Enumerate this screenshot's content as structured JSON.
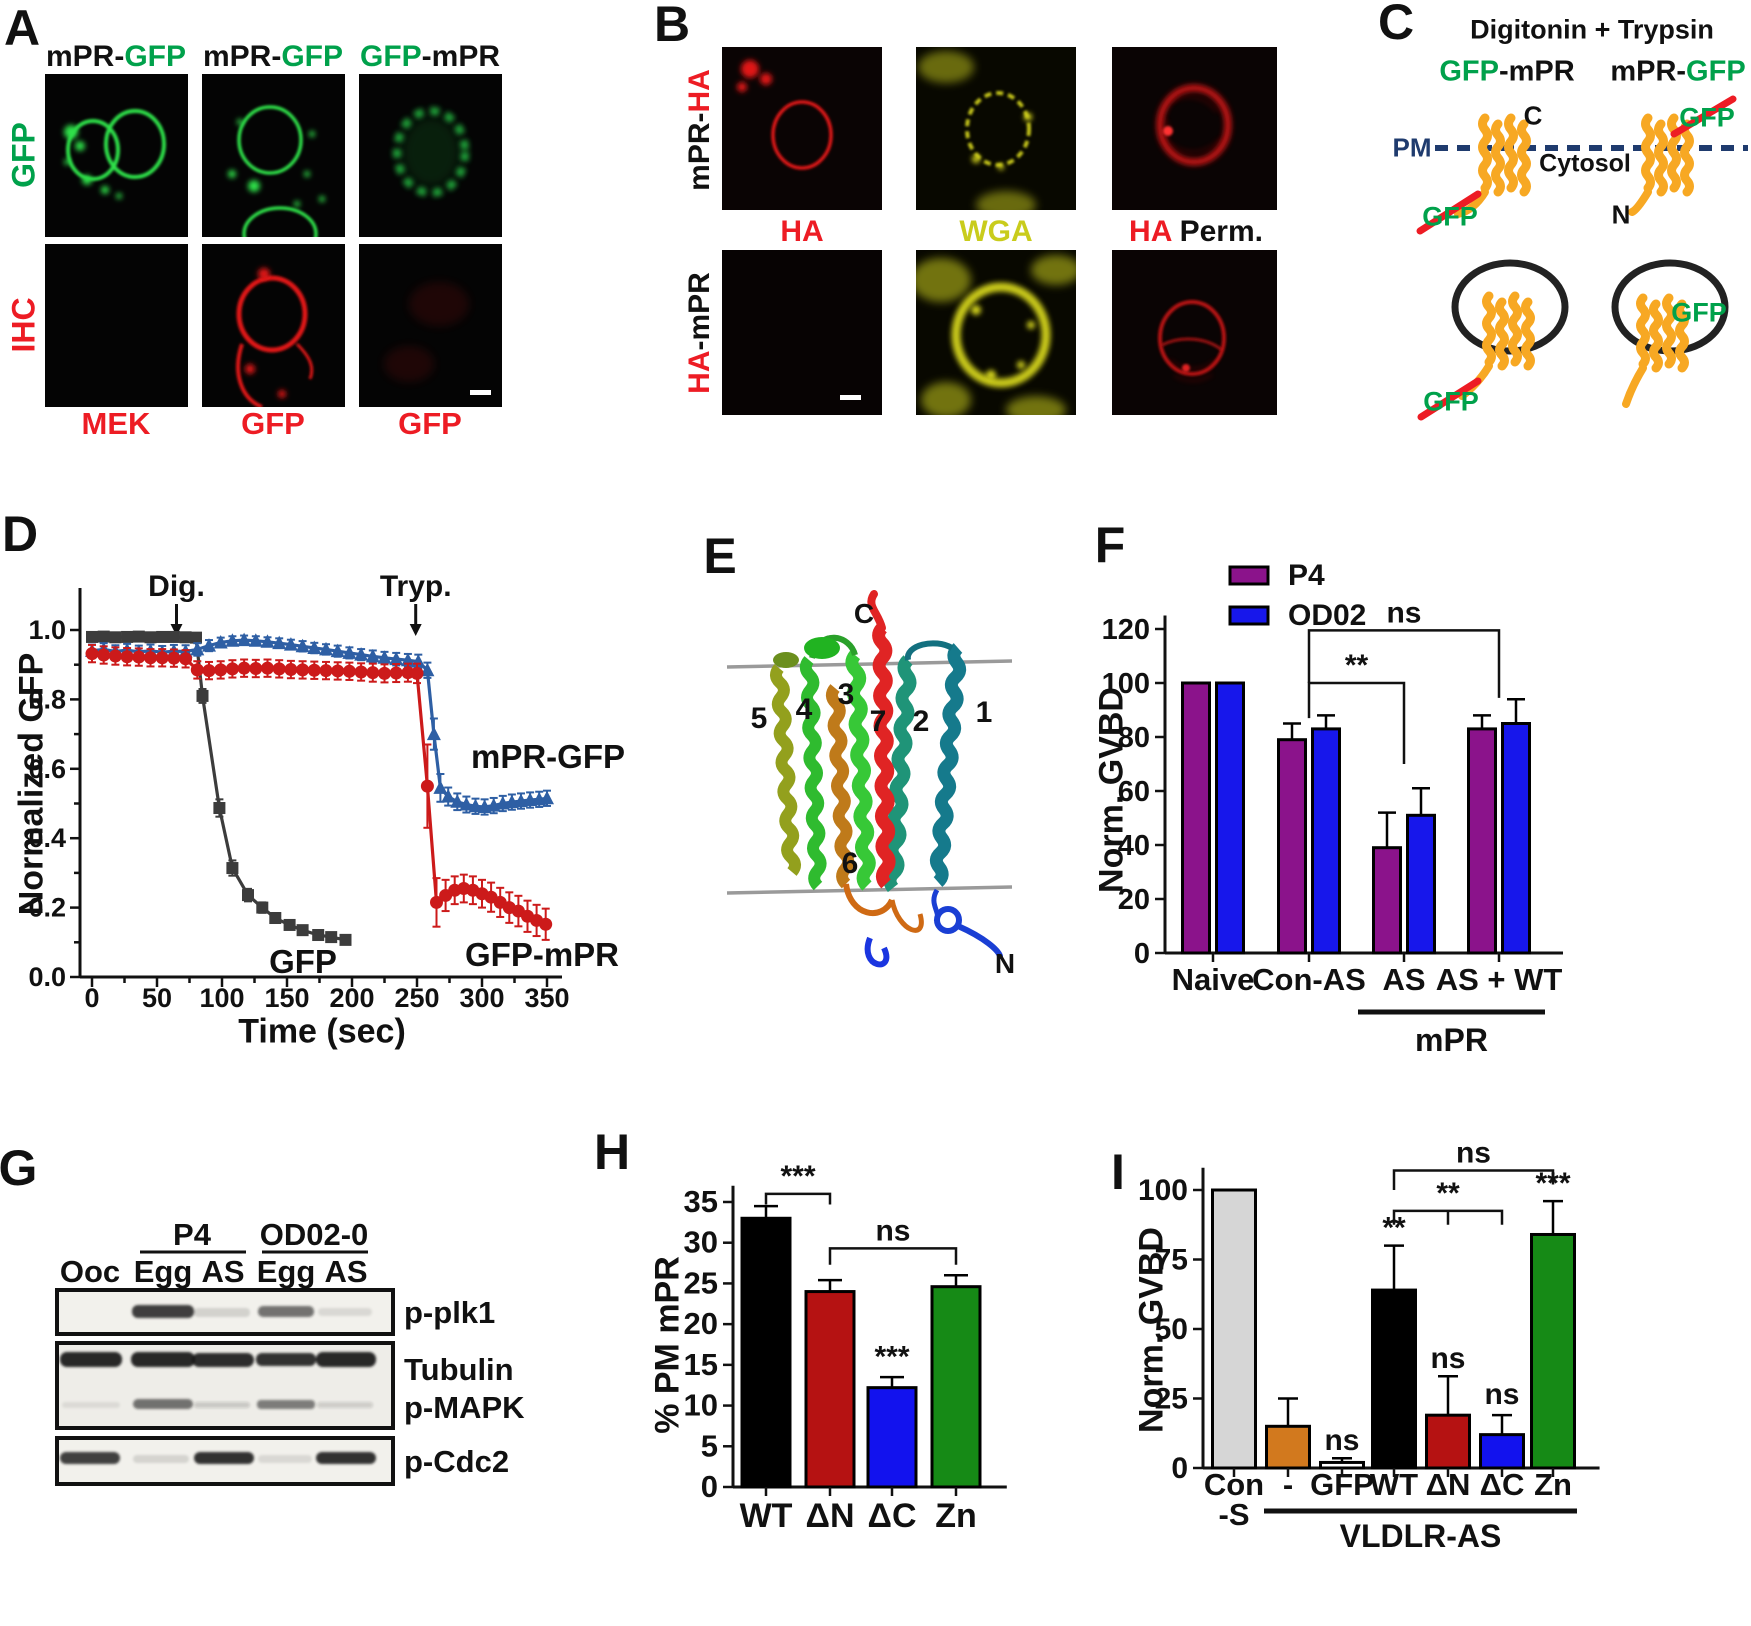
{
  "colors": {
    "green": "#00A14B",
    "red": "#ED1C24",
    "yellow": "#C9CC1C",
    "navy": "#1F3B6E",
    "black": "#111111"
  },
  "panelA": {
    "letter": "A",
    "headers": [
      {
        "segs": [
          {
            "t": "mPR-",
            "c": "#111111"
          },
          {
            "t": "GFP",
            "c": "#00A14B"
          }
        ]
      },
      {
        "segs": [
          {
            "t": "mPR-",
            "c": "#111111"
          },
          {
            "t": "GFP",
            "c": "#00A14B"
          }
        ]
      },
      {
        "segs": [
          {
            "t": "GFP",
            "c": "#00A14B"
          },
          {
            "t": "-mPR",
            "c": "#111111"
          }
        ]
      }
    ],
    "row_labels": [
      {
        "t": "GFP",
        "c": "#00A14B"
      },
      {
        "t": "IHC",
        "c": "#ED1C24"
      }
    ],
    "bottom_labels": [
      "MEK",
      "GFP",
      "GFP"
    ]
  },
  "panelB": {
    "letter": "B",
    "row_labels": [
      {
        "segs": [
          {
            "t": "mPR-",
            "c": "#111111"
          },
          {
            "t": "HA",
            "c": "#ED1C24"
          }
        ]
      },
      {
        "segs": [
          {
            "t": "HA",
            "c": "#ED1C24"
          },
          {
            "t": "-mPR",
            "c": "#111111"
          }
        ]
      }
    ],
    "mid_labels": [
      {
        "segs": [
          {
            "t": "HA",
            "c": "#ED1C24"
          }
        ]
      },
      {
        "segs": [
          {
            "t": "WGA",
            "c": "#C9CC1C"
          }
        ]
      },
      {
        "segs": [
          {
            "t": "HA",
            "c": "#ED1C24"
          },
          {
            "t": " Perm.",
            "c": "#111111"
          }
        ]
      }
    ]
  },
  "panelC": {
    "letter": "C",
    "title": "Digitonin + Trypsin",
    "left_construct": {
      "segs": [
        {
          "t": "GFP",
          "c": "#00A14B"
        },
        {
          "t": "-mPR",
          "c": "#111111"
        }
      ]
    },
    "right_construct": {
      "segs": [
        {
          "t": "mPR-",
          "c": "#111111"
        },
        {
          "t": "GFP",
          "c": "#00A14B"
        }
      ]
    },
    "pm": "PM",
    "cytosol": "Cytosol",
    "c_term": "C",
    "n_term": "N",
    "gfp": "GFP"
  },
  "panelD": {
    "letter": "D",
    "series_labels": {
      "gfp": "GFP",
      "mpr_gfp": "mPR-GFP",
      "gfp_mpr": "GFP-mPR"
    },
    "xlabel": "Time (sec)",
    "ylabel": "Normalized GFP"
  },
  "panelE": {
    "letter": "E",
    "helix_numbers": [
      "1",
      "2",
      "3",
      "4",
      "5",
      "6",
      "7"
    ],
    "c_term": "C",
    "n_term": "N"
  },
  "panelF": {
    "letter": "F",
    "ylabel": "Norm. GVBD"
  },
  "panelG": {
    "letter": "G",
    "group_labels": [
      "P4",
      "OD02-0"
    ],
    "lane_labels": [
      "Ooc",
      "Egg",
      "AS",
      "Egg",
      "AS"
    ],
    "blot_labels": [
      "p-plk1",
      "Tubulin",
      "p-MAPK",
      "p-Cdc2"
    ]
  },
  "panelH": {
    "letter": "H",
    "ylabel": "% PM mPR"
  },
  "panelI": {
    "letter": "I",
    "ylabel": "Norm. GVBD"
  },
  "chart_data": [
    {
      "id": "d",
      "type": "line",
      "title": "",
      "xlabel": "Time (sec)",
      "ylabel": "Normalized GFP",
      "xlim": [
        0,
        350
      ],
      "ylim": [
        0,
        1.05
      ],
      "xticks": [
        0,
        50,
        100,
        150,
        200,
        250,
        300,
        350
      ],
      "yticks": [
        0,
        0.2,
        0.4,
        0.6,
        0.8,
        1.0
      ],
      "x_minor": 25,
      "y_minor": 0.1,
      "legend_position": "inline",
      "events": [
        {
          "text": "Dig.",
          "x": 65
        },
        {
          "text": "Tryp.",
          "x": 249
        }
      ],
      "series": [
        {
          "name": "GFP",
          "marker": "square",
          "color": "#3c3c3c",
          "points": [
            [
              0,
              0.98,
              0.012
            ],
            [
              9,
              0.981,
              0.012
            ],
            [
              18,
              0.979,
              0.012
            ],
            [
              27,
              0.98,
              0.012
            ],
            [
              36,
              0.981,
              0.012
            ],
            [
              45,
              0.979,
              0.012
            ],
            [
              54,
              0.98,
              0.012
            ],
            [
              63,
              0.98,
              0.012
            ],
            [
              72,
              0.979,
              0.012
            ],
            [
              80,
              0.978,
              0.012
            ],
            [
              85,
              0.81,
              0.02
            ],
            [
              98,
              0.487,
              0.025
            ],
            [
              108,
              0.314,
              0.022
            ],
            [
              120,
              0.236,
              0.018
            ],
            [
              131,
              0.2,
              0.015
            ],
            [
              141,
              0.17,
              0.014
            ],
            [
              152,
              0.15,
              0.012
            ],
            [
              162,
              0.135,
              0.012
            ],
            [
              174,
              0.121,
              0.01
            ],
            [
              184,
              0.115,
              0.01
            ],
            [
              195,
              0.107,
              0.01
            ]
          ]
        },
        {
          "name": "mPR-GFP",
          "marker": "triangle",
          "color": "#2E5FA4",
          "points": [
            [
              0,
              0.94,
              0.018
            ],
            [
              9,
              0.944,
              0.018
            ],
            [
              18,
              0.938,
              0.018
            ],
            [
              27,
              0.942,
              0.018
            ],
            [
              36,
              0.937,
              0.018
            ],
            [
              45,
              0.94,
              0.018
            ],
            [
              54,
              0.936,
              0.018
            ],
            [
              63,
              0.939,
              0.018
            ],
            [
              72,
              0.938,
              0.018
            ],
            [
              81,
              0.944,
              0.018
            ],
            [
              90,
              0.955,
              0.016
            ],
            [
              99,
              0.964,
              0.014
            ],
            [
              108,
              0.969,
              0.013
            ],
            [
              117,
              0.971,
              0.013
            ],
            [
              126,
              0.969,
              0.013
            ],
            [
              135,
              0.966,
              0.013
            ],
            [
              144,
              0.962,
              0.014
            ],
            [
              153,
              0.958,
              0.014
            ],
            [
              162,
              0.953,
              0.015
            ],
            [
              171,
              0.948,
              0.015
            ],
            [
              180,
              0.944,
              0.015
            ],
            [
              189,
              0.939,
              0.016
            ],
            [
              198,
              0.934,
              0.016
            ],
            [
              207,
              0.929,
              0.016
            ],
            [
              216,
              0.924,
              0.017
            ],
            [
              225,
              0.92,
              0.017
            ],
            [
              234,
              0.916,
              0.018
            ],
            [
              243,
              0.913,
              0.018
            ],
            [
              251,
              0.909,
              0.02
            ],
            [
              258,
              0.884,
              0.022
            ],
            [
              263,
              0.7,
              0.045
            ],
            [
              268,
              0.545,
              0.04
            ],
            [
              274,
              0.52,
              0.026
            ],
            [
              281,
              0.505,
              0.024
            ],
            [
              288,
              0.497,
              0.023
            ],
            [
              295,
              0.492,
              0.022
            ],
            [
              302,
              0.49,
              0.022
            ],
            [
              309,
              0.494,
              0.022
            ],
            [
              316,
              0.5,
              0.022
            ],
            [
              323,
              0.504,
              0.022
            ],
            [
              330,
              0.507,
              0.022
            ],
            [
              337,
              0.51,
              0.022
            ],
            [
              344,
              0.512,
              0.022
            ],
            [
              350,
              0.515,
              0.022
            ]
          ]
        },
        {
          "name": "GFP-mPR",
          "marker": "circle",
          "color": "#CC1A1A",
          "points": [
            [
              0,
              0.932,
              0.025
            ],
            [
              9,
              0.928,
              0.025
            ],
            [
              18,
              0.925,
              0.025
            ],
            [
              27,
              0.923,
              0.025
            ],
            [
              36,
              0.922,
              0.025
            ],
            [
              45,
              0.92,
              0.025
            ],
            [
              54,
              0.92,
              0.025
            ],
            [
              63,
              0.919,
              0.025
            ],
            [
              72,
              0.917,
              0.025
            ],
            [
              81,
              0.885,
              0.025
            ],
            [
              90,
              0.883,
              0.025
            ],
            [
              99,
              0.885,
              0.025
            ],
            [
              108,
              0.888,
              0.025
            ],
            [
              117,
              0.89,
              0.025
            ],
            [
              126,
              0.889,
              0.025
            ],
            [
              135,
              0.89,
              0.025
            ],
            [
              144,
              0.888,
              0.025
            ],
            [
              153,
              0.886,
              0.025
            ],
            [
              162,
              0.885,
              0.025
            ],
            [
              171,
              0.884,
              0.025
            ],
            [
              180,
              0.883,
              0.025
            ],
            [
              189,
              0.882,
              0.025
            ],
            [
              198,
              0.881,
              0.025
            ],
            [
              207,
              0.879,
              0.025
            ],
            [
              216,
              0.877,
              0.026
            ],
            [
              225,
              0.875,
              0.026
            ],
            [
              234,
              0.876,
              0.026
            ],
            [
              243,
              0.877,
              0.026
            ],
            [
              250,
              0.875,
              0.028
            ],
            [
              258,
              0.55,
              0.12
            ],
            [
              265,
              0.215,
              0.07
            ],
            [
              272,
              0.235,
              0.045
            ],
            [
              279,
              0.25,
              0.04
            ],
            [
              286,
              0.255,
              0.04
            ],
            [
              293,
              0.25,
              0.04
            ],
            [
              300,
              0.24,
              0.04
            ],
            [
              307,
              0.23,
              0.042
            ],
            [
              314,
              0.215,
              0.042
            ],
            [
              321,
              0.2,
              0.044
            ],
            [
              328,
              0.19,
              0.044
            ],
            [
              335,
              0.175,
              0.045
            ],
            [
              342,
              0.163,
              0.045
            ],
            [
              349,
              0.152,
              0.045
            ]
          ]
        }
      ]
    },
    {
      "id": "f",
      "type": "grouped_bar",
      "ylabel": "Norm. GVBD",
      "categories": [
        "Naive",
        "Con-AS",
        "AS",
        "AS + WT"
      ],
      "yticks": [
        0,
        20,
        40,
        60,
        80,
        100,
        120
      ],
      "ylim": [
        0,
        125
      ],
      "series": [
        {
          "name": "P4",
          "color": "#8B138B",
          "values": [
            100,
            79,
            39,
            83
          ],
          "errors": [
            0,
            6,
            13,
            5
          ]
        },
        {
          "name": "OD02",
          "color": "#1717EB",
          "values": [
            100,
            83,
            51,
            85
          ],
          "errors": [
            0,
            5,
            10,
            9
          ]
        }
      ],
      "brackets": [
        {
          "label": "**",
          "from": 1,
          "to": 2,
          "y": 100,
          "leg1": 13,
          "leg2": 30
        },
        {
          "label": "ns",
          "from": 1,
          "to": 3,
          "y": 119.5,
          "leg1": 19.5,
          "leg2": 25
        }
      ],
      "group_rule": {
        "label": "mPR",
        "from": 2,
        "to": 3
      }
    },
    {
      "id": "h",
      "type": "bar",
      "ylabel": "% PM mPR",
      "categories": [
        "WT",
        "ΔN",
        "ΔC",
        "Zn"
      ],
      "yticks": [
        0,
        5,
        10,
        15,
        20,
        25,
        30,
        35
      ],
      "ylim": [
        0,
        37
      ],
      "values": [
        33,
        24,
        12.2,
        24.6
      ],
      "errors": [
        1.5,
        1.4,
        1.3,
        1.4
      ],
      "colors": [
        "#000000",
        "#B51212",
        "#1212EE",
        "#168A16"
      ],
      "brackets": [
        {
          "label": "***",
          "from": 0,
          "to": 1,
          "y": 36,
          "leg1": 1.3,
          "leg2": 1.3
        },
        {
          "label": "ns",
          "from": 1,
          "to": 3,
          "y": 29.3,
          "leg1": 2,
          "leg2": 2
        }
      ],
      "star_annotations": [
        {
          "cat": 2,
          "text": "***",
          "y": 14.8
        }
      ]
    },
    {
      "id": "i",
      "type": "bar",
      "ylabel": "Norm. GVBD",
      "categories": [
        [
          "Con",
          "-S"
        ],
        "-",
        "GFP",
        "WT",
        "ΔN",
        "ΔC",
        "Zn"
      ],
      "yticks": [
        0,
        25,
        50,
        75,
        100
      ],
      "ylim": [
        0,
        108
      ],
      "values": [
        100,
        15,
        2,
        64,
        19,
        12,
        84
      ],
      "errors": [
        0,
        10,
        1.5,
        16,
        14,
        7,
        12
      ],
      "colors": [
        "#D6D6D6",
        "#D2791E",
        "#FFFFFF",
        "#000000",
        "#B51212",
        "#1212EE",
        "#168A16"
      ],
      "brackets": [
        {
          "label": "ns",
          "from": 3,
          "to": 6,
          "y": 107,
          "leg1": 7,
          "leg2": 5
        },
        {
          "label": "**",
          "from": 3,
          "to": 5,
          "y": 92.5,
          "leg1": 5,
          "leg2": 5,
          "mid": 4
        }
      ],
      "star_annotations": [
        {
          "cat": 2,
          "text": "ns",
          "y": 6.5
        },
        {
          "cat": 3,
          "text": "**",
          "y": 83
        },
        {
          "cat": 4,
          "text": "ns",
          "y": 36
        },
        {
          "cat": 5,
          "text": "ns",
          "y": 23
        },
        {
          "cat": 6,
          "text": "***",
          "y": 99
        }
      ],
      "group_rule": {
        "label": "VLDLR-AS",
        "from": 1,
        "to": 6
      }
    }
  ]
}
